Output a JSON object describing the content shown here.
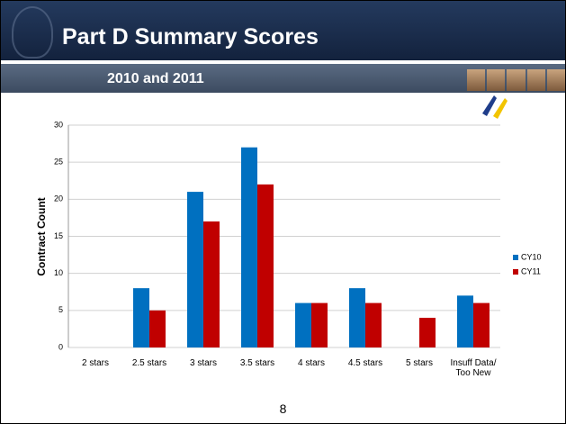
{
  "header": {
    "title": "Part D Summary Scores",
    "subtitle": "2010 and 2011"
  },
  "chart_data": {
    "type": "bar",
    "y_label": "Contract Count",
    "categories": [
      "2 stars",
      "2.5 stars",
      "3 stars",
      "3.5 stars",
      "4 stars",
      "4.5 stars",
      "5 stars",
      "Insuff Data/ Too New"
    ],
    "series": [
      {
        "name": "CY10",
        "color": "#0070c0",
        "values": [
          0,
          8,
          21,
          27,
          6,
          8,
          0,
          7
        ]
      },
      {
        "name": "CY11",
        "color": "#c00000",
        "values": [
          0,
          5,
          17,
          22,
          6,
          6,
          4,
          6
        ]
      }
    ],
    "ylim": [
      0,
      30
    ],
    "yticks": [
      0,
      5,
      10,
      15,
      20,
      25,
      30
    ],
    "grid": true,
    "legend": "right"
  },
  "page_number": "8"
}
